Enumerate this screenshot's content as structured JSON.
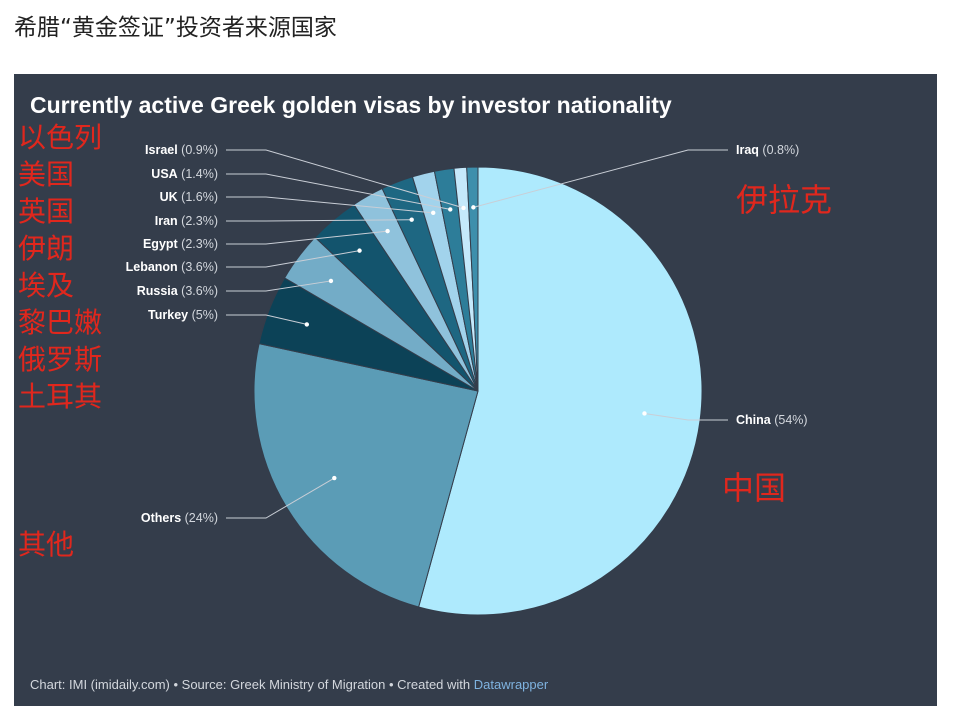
{
  "page_title": "希腊“黄金签证”投资者来源国家",
  "chart_title": "Currently active Greek golden visas by investor nationality",
  "source": {
    "text": "Chart: IMI (imidaily.com) • Source: Greek Ministry of Migration • Created with ",
    "link": "Datawrapper"
  },
  "annotations": {
    "left_column": [
      "以色列",
      "美国",
      "英国",
      "伊朗",
      "埃及",
      "黎巴嫩",
      "俄罗斯",
      "土耳其"
    ],
    "iraq": "伊拉克",
    "china": "中国",
    "others": "其他"
  },
  "chart_data": {
    "type": "pie",
    "title": "Currently active Greek golden visas by investor nationality",
    "slices": [
      {
        "name": "China",
        "value": 54,
        "label": "(54%)",
        "color": "#aeeafd"
      },
      {
        "name": "Others",
        "value": 24,
        "label": "(24%)",
        "color": "#5b9cb6"
      },
      {
        "name": "Turkey",
        "value": 5,
        "label": "(5%)",
        "color": "#0c4257"
      },
      {
        "name": "Russia",
        "value": 3.6,
        "label": "(3.6%)",
        "color": "#73acc7"
      },
      {
        "name": "Lebanon",
        "value": 3.6,
        "label": "(3.6%)",
        "color": "#13546d"
      },
      {
        "name": "Egypt",
        "value": 2.3,
        "label": "(2.3%)",
        "color": "#8fc2dc"
      },
      {
        "name": "Iran",
        "value": 2.3,
        "label": "(2.3%)",
        "color": "#1e6782"
      },
      {
        "name": "UK",
        "value": 1.6,
        "label": "(1.6%)",
        "color": "#a2d3ec"
      },
      {
        "name": "USA",
        "value": 1.4,
        "label": "(1.4%)",
        "color": "#2d7d99"
      },
      {
        "name": "Israel",
        "value": 0.9,
        "label": "(0.9%)",
        "color": "#c5e9fb"
      },
      {
        "name": "Iraq",
        "value": 0.8,
        "label": "(0.8%)",
        "color": "#3d8fac"
      }
    ]
  }
}
